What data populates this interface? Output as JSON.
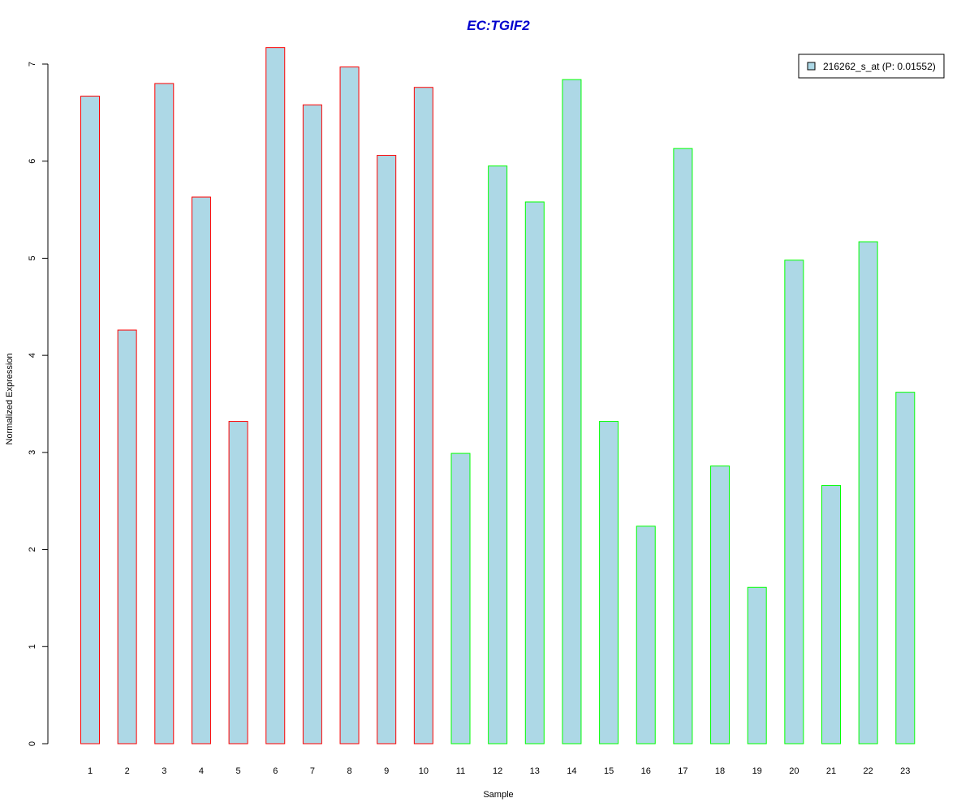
{
  "chart_data": {
    "type": "bar",
    "title": "EC:TGIF2",
    "xlabel": "Sample",
    "ylabel": "Normalized Expression",
    "categories": [
      "1",
      "2",
      "3",
      "4",
      "5",
      "6",
      "7",
      "8",
      "9",
      "10",
      "11",
      "12",
      "13",
      "14",
      "15",
      "16",
      "17",
      "18",
      "19",
      "20",
      "21",
      "22",
      "23"
    ],
    "series": [
      {
        "name": "216262_s_at (P: 0.01552)",
        "values": [
          6.67,
          4.26,
          6.8,
          5.63,
          3.32,
          7.17,
          6.58,
          6.97,
          6.06,
          6.76,
          2.99,
          5.95,
          5.58,
          6.84,
          3.32,
          2.24,
          6.13,
          2.86,
          1.61,
          4.98,
          2.66,
          5.17,
          3.62
        ]
      }
    ],
    "groups": [
      {
        "start": 0,
        "end": 9,
        "border_color": "#ff0000"
      },
      {
        "start": 10,
        "end": 22,
        "border_color": "#00ff00"
      }
    ],
    "yticks": [
      "0",
      "1",
      "2",
      "3",
      "4",
      "5",
      "6",
      "7"
    ],
    "ylim": [
      0,
      7
    ],
    "grid": false,
    "legend_position": "top-right",
    "colors": {
      "bar_fill": "#add8e6",
      "title": "#0000cd",
      "axis": "#000000"
    }
  }
}
